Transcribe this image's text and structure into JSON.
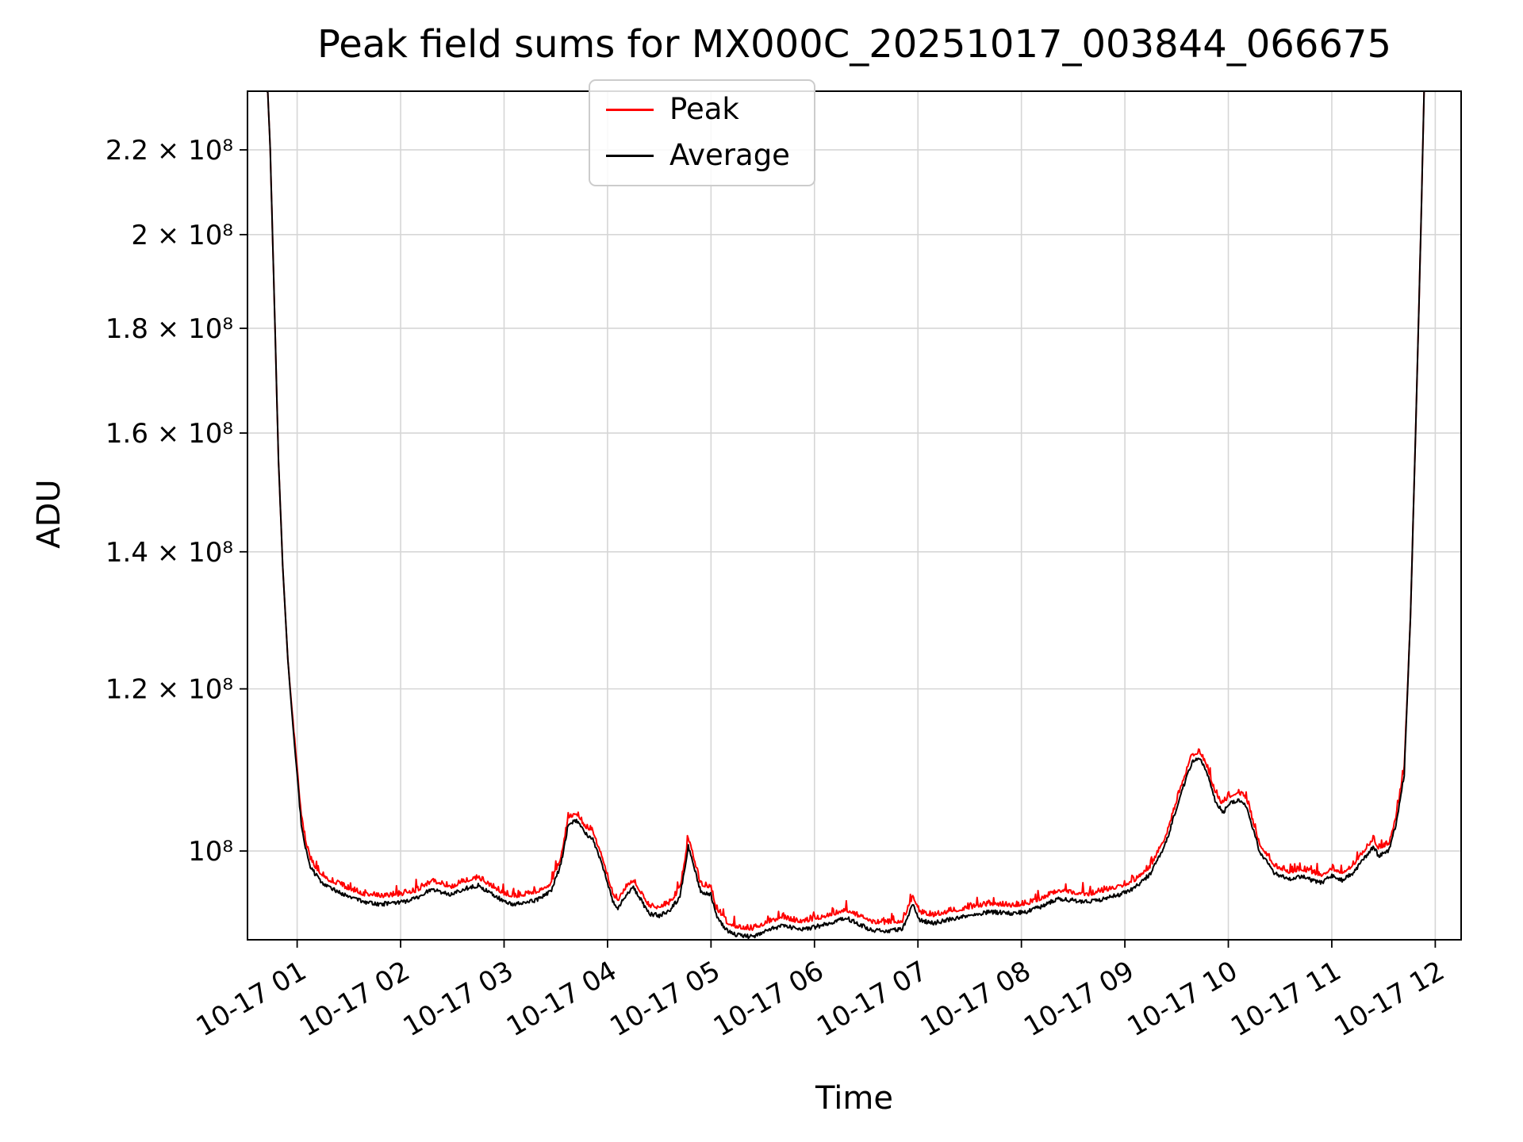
{
  "chart_data": {
    "type": "line",
    "title": "Peak field sums for MX000C_20251017_003844_066675",
    "xlabel": "Time",
    "ylabel": "ADU",
    "yscale": "log",
    "grid": true,
    "legend_position": "upper center-left inside axes",
    "x_unit": "hours after 2025-10-17 00:00",
    "y_unit": "ADU, values in units of 1e8",
    "xlim": [
      0.52,
      12.25
    ],
    "ylim": [
      0.905,
      2.35
    ],
    "x_ticks": [
      {
        "v": 1,
        "label": "10-17 01"
      },
      {
        "v": 2,
        "label": "10-17 02"
      },
      {
        "v": 3,
        "label": "10-17 03"
      },
      {
        "v": 4,
        "label": "10-17 04"
      },
      {
        "v": 5,
        "label": "10-17 05"
      },
      {
        "v": 6,
        "label": "10-17 06"
      },
      {
        "v": 7,
        "label": "10-17 07"
      },
      {
        "v": 8,
        "label": "10-17 08"
      },
      {
        "v": 9,
        "label": "10-17 09"
      },
      {
        "v": 10,
        "label": "10-17 10"
      },
      {
        "v": 11,
        "label": "10-17 11"
      },
      {
        "v": 12,
        "label": "10-17 12"
      }
    ],
    "y_ticks": [
      {
        "v": 1.0,
        "label": "10⁸"
      },
      {
        "v": 1.2,
        "label": "1.2 × 10⁸"
      },
      {
        "v": 1.4,
        "label": "1.4 × 10⁸"
      },
      {
        "v": 1.6,
        "label": "1.6 × 10⁸"
      },
      {
        "v": 1.8,
        "label": "1.8 × 10⁸"
      },
      {
        "v": 2.0,
        "label": "2 × 10⁸"
      },
      {
        "v": 2.2,
        "label": "2.2 × 10⁸"
      }
    ],
    "x": [
      0.52,
      0.7,
      0.74,
      0.78,
      0.82,
      0.86,
      0.91,
      0.96,
      1.0,
      1.04,
      1.08,
      1.12,
      1.17,
      1.22,
      1.3,
      1.4,
      1.5,
      1.65,
      1.8,
      2.0,
      2.15,
      2.3,
      2.4,
      2.5,
      2.6,
      2.75,
      2.85,
      3.0,
      3.1,
      3.2,
      3.3,
      3.45,
      3.55,
      3.62,
      3.7,
      3.78,
      3.85,
      3.95,
      4.05,
      4.1,
      4.18,
      4.25,
      4.33,
      4.4,
      4.5,
      4.6,
      4.7,
      4.78,
      4.82,
      4.9,
      5.0,
      5.05,
      5.15,
      5.25,
      5.4,
      5.55,
      5.7,
      5.85,
      6.0,
      6.15,
      6.3,
      6.45,
      6.55,
      6.7,
      6.85,
      6.95,
      7.02,
      7.15,
      7.3,
      7.5,
      7.7,
      7.9,
      8.05,
      8.2,
      8.35,
      8.5,
      8.65,
      8.8,
      8.95,
      9.1,
      9.25,
      9.4,
      9.55,
      9.65,
      9.72,
      9.8,
      9.88,
      9.95,
      10.02,
      10.1,
      10.18,
      10.3,
      10.45,
      10.6,
      10.7,
      10.8,
      10.9,
      11.0,
      11.1,
      11.2,
      11.3,
      11.4,
      11.45,
      11.55,
      11.62,
      11.7,
      11.76,
      11.81,
      11.86,
      11.9,
      12.25
    ],
    "series": [
      {
        "name": "Peak",
        "color": "#ff0000",
        "values": [
          2.45,
          2.45,
          2.2,
          1.85,
          1.55,
          1.38,
          1.24,
          1.156,
          1.096,
          1.036,
          1.011,
          0.991,
          0.981,
          0.974,
          0.966,
          0.961,
          0.956,
          0.95,
          0.948,
          0.95,
          0.954,
          0.964,
          0.961,
          0.958,
          0.964,
          0.968,
          0.961,
          0.951,
          0.948,
          0.95,
          0.952,
          0.961,
          0.991,
          1.036,
          1.041,
          1.026,
          1.021,
          0.991,
          0.951,
          0.944,
          0.958,
          0.966,
          0.951,
          0.938,
          0.936,
          0.941,
          0.956,
          1.011,
          0.996,
          0.961,
          0.958,
          0.936,
          0.921,
          0.916,
          0.914,
          0.921,
          0.926,
          0.921,
          0.924,
          0.928,
          0.934,
          0.926,
          0.921,
          0.92,
          0.922,
          0.948,
          0.931,
          0.928,
          0.932,
          0.936,
          0.94,
          0.938,
          0.94,
          0.946,
          0.954,
          0.952,
          0.95,
          0.954,
          0.958,
          0.966,
          0.981,
          1.016,
          1.076,
          1.111,
          1.116,
          1.096,
          1.061,
          1.051,
          1.061,
          1.066,
          1.056,
          1.006,
          0.981,
          0.974,
          0.978,
          0.974,
          0.971,
          0.978,
          0.974,
          0.981,
          0.996,
          1.011,
          1.001,
          1.006,
          1.036,
          1.096,
          1.3,
          1.6,
          2.0,
          2.45,
          2.45
        ]
      },
      {
        "name": "Average",
        "color": "#000000",
        "values": [
          2.45,
          2.45,
          2.2,
          1.85,
          1.55,
          1.38,
          1.24,
          1.15,
          1.09,
          1.03,
          1.005,
          0.985,
          0.975,
          0.968,
          0.96,
          0.955,
          0.95,
          0.944,
          0.942,
          0.944,
          0.948,
          0.958,
          0.955,
          0.952,
          0.958,
          0.962,
          0.955,
          0.945,
          0.942,
          0.944,
          0.946,
          0.955,
          0.985,
          1.03,
          1.035,
          1.02,
          1.015,
          0.985,
          0.945,
          0.938,
          0.952,
          0.96,
          0.945,
          0.932,
          0.93,
          0.935,
          0.95,
          1.005,
          0.99,
          0.955,
          0.952,
          0.93,
          0.915,
          0.91,
          0.908,
          0.915,
          0.92,
          0.915,
          0.918,
          0.922,
          0.928,
          0.92,
          0.915,
          0.914,
          0.916,
          0.942,
          0.925,
          0.922,
          0.926,
          0.93,
          0.934,
          0.932,
          0.934,
          0.94,
          0.948,
          0.946,
          0.944,
          0.948,
          0.952,
          0.96,
          0.975,
          1.01,
          1.07,
          1.105,
          1.11,
          1.09,
          1.055,
          1.045,
          1.055,
          1.06,
          1.05,
          1.0,
          0.975,
          0.968,
          0.972,
          0.968,
          0.965,
          0.972,
          0.968,
          0.975,
          0.99,
          1.005,
          0.995,
          1.0,
          1.03,
          1.09,
          1.3,
          1.6,
          2.0,
          2.45,
          2.45
        ]
      }
    ],
    "noise": {
      "seed": 20251017,
      "peak_amp": 0.006,
      "avg_amp": 0.0024
    }
  }
}
